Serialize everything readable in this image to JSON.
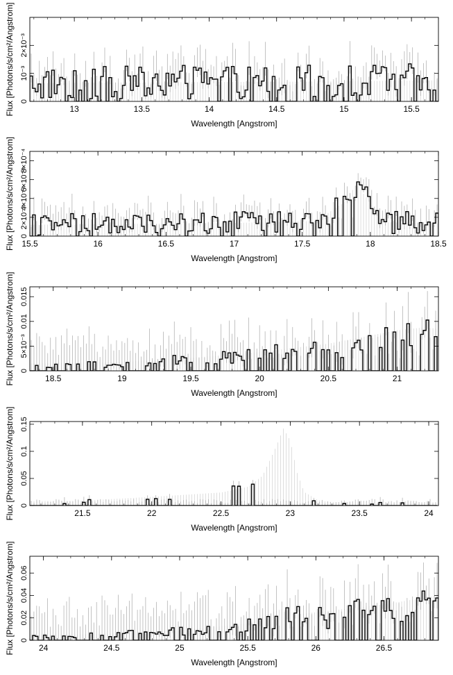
{
  "chart_data": [
    {
      "type": "bar",
      "xlabel": "Wavelength [Angstrom]",
      "ylabel": "Flux [Photons/s/cm²/Angstrom]",
      "xlim": [
        12.67,
        15.7
      ],
      "ylim": [
        0,
        0.003
      ],
      "xticks": [
        13,
        13.5,
        14,
        14.5,
        15,
        15.5
      ],
      "xtick_labels": [
        "13",
        "13.5",
        "14",
        "14.5",
        "15",
        "15.5"
      ],
      "yticks": [
        0,
        0.001,
        0.002
      ],
      "ytick_labels": [
        "0",
        "10⁻³",
        "2×10⁻³"
      ],
      "grid": false,
      "bins": {
        "start": 12.67,
        "step": 0.0202,
        "count": 150
      },
      "model": {
        "points": [
          [
            12.67,
            0.00065
          ],
          [
            13.5,
            0.00068
          ],
          [
            14.5,
            0.0007
          ],
          [
            15.7,
            0.00075
          ]
        ]
      },
      "noise_amp": 0.0006,
      "error_amp": 0.0008
    },
    {
      "type": "bar",
      "xlabel": "Wavelength [Angstrom]",
      "ylabel": "Flux [Photons/s/cm²/Angstrom]",
      "xlim": [
        15.5,
        18.5
      ],
      "ylim": [
        0,
        0.0009
      ],
      "xticks": [
        15.5,
        16,
        16.5,
        17,
        17.5,
        18,
        18.5
      ],
      "xtick_labels": [
        "15.5",
        "16",
        "16.5",
        "17",
        "17.5",
        "18",
        "18.5"
      ],
      "yticks": [
        0,
        0.0002,
        0.0004,
        0.0006,
        0.0008
      ],
      "ytick_labels": [
        "0",
        "2×10⁻⁴",
        "4×10⁻⁴",
        "6×10⁻⁴",
        "8×10⁻⁴"
      ],
      "grid": false,
      "bins": {
        "start": 15.5,
        "step": 0.02,
        "count": 150
      },
      "model": {
        "points": [
          [
            15.5,
            0.00012
          ],
          [
            17.0,
            0.00014
          ],
          [
            17.6,
            0.00016
          ],
          [
            17.8,
            0.00035
          ],
          [
            17.9,
            0.00055
          ],
          [
            18.0,
            0.00035
          ],
          [
            18.1,
            0.00015
          ],
          [
            18.5,
            0.00013
          ]
        ]
      },
      "noise_amp": 0.00012,
      "error_amp": 0.00018
    },
    {
      "type": "bar",
      "xlabel": "Wavelength [Angstrom]",
      "ylabel": "Flux [Photons/s/cm²/Angstrom]",
      "xlim": [
        18.33,
        21.3
      ],
      "ylim": [
        0,
        0.017
      ],
      "xticks": [
        18.5,
        19,
        19.5,
        20,
        20.5,
        21
      ],
      "xtick_labels": [
        "18.5",
        "19",
        "19.5",
        "20",
        "20.5",
        "21"
      ],
      "yticks": [
        0,
        0.005,
        0.01,
        0.015
      ],
      "ytick_labels": [
        "0",
        "5×10⁻³",
        "0.01",
        "0.015"
      ],
      "grid": false,
      "bins": {
        "start": 18.33,
        "step": 0.02,
        "count": 148
      },
      "model": {
        "points": [
          [
            18.33,
            0.0015
          ],
          [
            19.0,
            0.0018
          ],
          [
            19.5,
            0.0026
          ],
          [
            20.0,
            0.0038
          ],
          [
            20.5,
            0.0055
          ],
          [
            21.0,
            0.0082
          ],
          [
            21.2,
            0.0088
          ],
          [
            21.3,
            0.0085
          ]
        ]
      },
      "noise_amp": 0.0025,
      "error_amp": 0.006
    },
    {
      "type": "bar",
      "xlabel": "Wavelength [Angstrom]",
      "ylabel": "Flux [Photons/s/cm²/Angstrom]",
      "xlim": [
        21.12,
        24.07
      ],
      "ylim": [
        0,
        0.155
      ],
      "xticks": [
        21.5,
        22,
        22.5,
        23,
        23.5,
        24
      ],
      "xtick_labels": [
        "21.5",
        "22",
        "22.5",
        "23",
        "23.5",
        "24"
      ],
      "yticks": [
        0,
        0.05,
        0.1,
        0.15
      ],
      "ytick_labels": [
        "0",
        "0.05",
        "0.1",
        "0.15"
      ],
      "grid": false,
      "bins": {
        "start": 21.12,
        "step": 0.02,
        "count": 147
      },
      "model": {
        "points": [
          [
            21.12,
            0.008
          ],
          [
            21.5,
            0.009
          ],
          [
            22.0,
            0.016
          ],
          [
            22.5,
            0.024
          ],
          [
            22.7,
            0.035
          ],
          [
            22.8,
            0.055
          ],
          [
            22.9,
            0.11
          ],
          [
            22.95,
            0.142
          ],
          [
            23.0,
            0.12
          ],
          [
            23.05,
            0.06
          ],
          [
            23.1,
            0.025
          ],
          [
            23.2,
            0.01
          ],
          [
            23.3,
            0.006
          ],
          [
            24.07,
            0.006
          ]
        ]
      },
      "noise_amp": 0.004,
      "error_amp": 0.01
    },
    {
      "type": "bar",
      "xlabel": "Wavelength [Angstrom]",
      "ylabel": "Flux [Photons/s/cm²/Angstrom]",
      "xlim": [
        23.9,
        26.9
      ],
      "ylim": [
        0,
        0.075
      ],
      "xticks": [
        24,
        24.5,
        25,
        25.5,
        26,
        26.5
      ],
      "xtick_labels": [
        "24",
        "24.5",
        "25",
        "25.5",
        "26",
        "26.5"
      ],
      "yticks": [
        0,
        0.02,
        0.04,
        0.06
      ],
      "ytick_labels": [
        "0",
        "0.02",
        "0.04",
        "0.06"
      ],
      "grid": false,
      "bins": {
        "start": 23.9,
        "step": 0.02,
        "count": 150
      },
      "model": {
        "points": [
          [
            23.9,
            0.004
          ],
          [
            24.5,
            0.006
          ],
          [
            25.0,
            0.009
          ],
          [
            25.5,
            0.015
          ],
          [
            25.7,
            0.026
          ],
          [
            25.75,
            0.028
          ],
          [
            25.85,
            0.023
          ],
          [
            26.0,
            0.025
          ],
          [
            26.5,
            0.032
          ],
          [
            26.9,
            0.04
          ]
        ]
      },
      "noise_amp": 0.01,
      "error_amp": 0.03
    }
  ]
}
